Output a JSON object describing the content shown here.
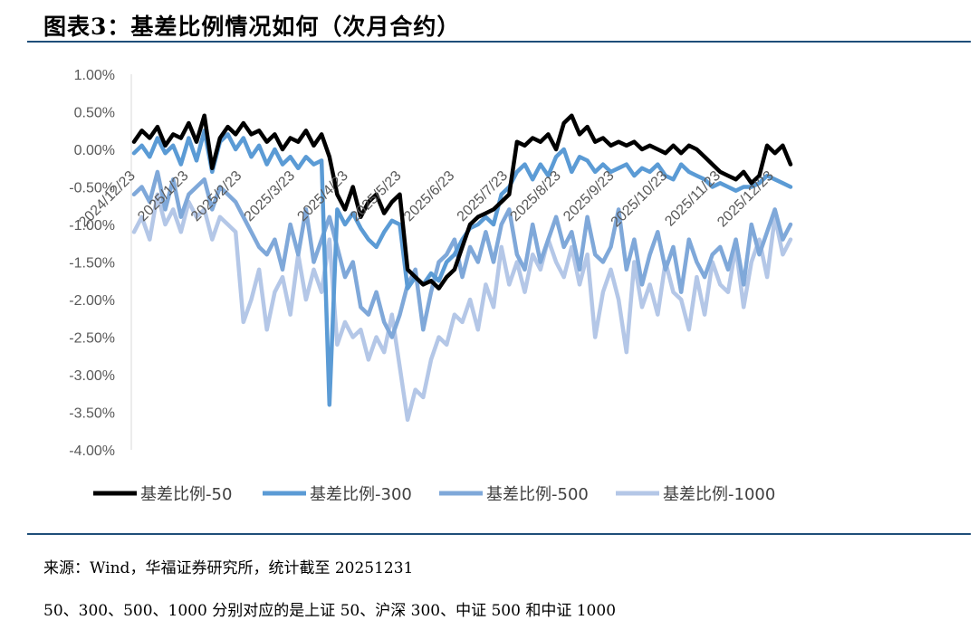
{
  "header": {
    "title": "图表3：基差比例情况如何（次月合约）"
  },
  "footer": {
    "source": "来源：Wind，华福证券研究所，统计截至 20251231",
    "description": "50、300、500、1000 分别对应的是上证 50、沪深 300、中证 500 和中证 1000"
  },
  "chart_data": {
    "type": "line",
    "title": "",
    "xlabel": "",
    "ylabel": "",
    "ylim": [
      -4.0,
      1.0
    ],
    "y_ticks": [
      "1.00%",
      "0.50%",
      "0.00%",
      "-0.50%",
      "-1.00%",
      "-1.50%",
      "-2.00%",
      "-2.50%",
      "-3.00%",
      "-3.50%",
      "-4.00%"
    ],
    "x_ticks": [
      "2024/12/23",
      "2025/1/23",
      "2025/2/23",
      "2025/3/23",
      "2025/4/23",
      "2025/5/23",
      "2025/6/23",
      "2025/7/23",
      "2025/8/23",
      "2025/9/23",
      "2025/10/23",
      "2025/11/23",
      "2025/12/23"
    ],
    "legend_position": "bottom",
    "series": [
      {
        "name": "基差比例-50",
        "color": "#000000",
        "values": [
          0.1,
          0.25,
          0.15,
          0.3,
          0.05,
          0.2,
          0.15,
          0.35,
          0.1,
          0.45,
          -0.25,
          0.15,
          0.3,
          0.2,
          0.35,
          0.2,
          0.25,
          0.1,
          0.2,
          0.0,
          0.15,
          0.1,
          0.25,
          0.05,
          0.2,
          -0.1,
          -0.6,
          -0.8,
          -0.5,
          -0.9,
          -0.7,
          -0.6,
          -0.85,
          -0.7,
          -0.6,
          -1.6,
          -1.7,
          -1.8,
          -1.75,
          -1.85,
          -1.7,
          -1.6,
          -1.3,
          -1.0,
          -0.9,
          -0.85,
          -0.8,
          -0.7,
          -0.6,
          0.1,
          0.05,
          0.15,
          0.1,
          0.2,
          0.0,
          0.35,
          0.45,
          0.2,
          0.3,
          0.1,
          0.15,
          0.05,
          0.1,
          0.05,
          0.1,
          0.0,
          0.05,
          0.0,
          -0.05,
          0.05,
          -0.05,
          0.05,
          0.0,
          -0.1,
          -0.2,
          -0.3,
          -0.35,
          -0.4,
          -0.3,
          -0.45,
          -0.35,
          0.05,
          -0.05,
          0.05,
          -0.2
        ]
      },
      {
        "name": "基差比例-300",
        "color": "#5b9bd5",
        "values": [
          -0.05,
          0.05,
          -0.1,
          0.15,
          -0.05,
          0.05,
          -0.2,
          0.15,
          -0.15,
          0.25,
          -0.3,
          0.1,
          0.2,
          0.0,
          0.15,
          -0.1,
          0.05,
          -0.2,
          0.0,
          -0.2,
          -0.1,
          -0.25,
          -0.1,
          -0.2,
          -0.15,
          -3.4,
          -0.8,
          -1.0,
          -0.85,
          -1.05,
          -1.2,
          -1.3,
          -1.1,
          -0.95,
          -1.0,
          -1.85,
          -1.7,
          -1.8,
          -1.65,
          -1.75,
          -1.5,
          -1.4,
          -1.2,
          -1.05,
          -1.0,
          -0.9,
          -1.0,
          -0.6,
          -0.5,
          -0.3,
          -0.2,
          -0.4,
          -0.2,
          -0.35,
          -0.1,
          0.0,
          -0.3,
          -0.1,
          -0.15,
          -0.3,
          -0.2,
          -0.3,
          -0.25,
          -0.2,
          -0.35,
          -0.25,
          -0.3,
          -0.2,
          -0.35,
          -0.4,
          -0.2,
          -0.3,
          -0.35,
          -0.4,
          -0.5,
          -0.45,
          -0.5,
          -0.55,
          -0.5,
          -0.5,
          -0.45,
          -0.35,
          -0.4,
          -0.45,
          -0.5
        ]
      },
      {
        "name": "基差比例-500",
        "color": "#7fa8d9",
        "values": [
          -0.6,
          -0.5,
          -0.7,
          -0.3,
          -0.8,
          -0.4,
          -0.9,
          -0.6,
          -0.5,
          -0.4,
          -0.8,
          -0.5,
          -0.6,
          -0.7,
          -0.9,
          -1.1,
          -1.3,
          -1.4,
          -1.2,
          -1.6,
          -1.0,
          -1.4,
          -0.8,
          -1.5,
          -1.2,
          -0.9,
          -1.3,
          -1.7,
          -1.5,
          -2.1,
          -2.2,
          -1.9,
          -2.3,
          -2.5,
          -2.2,
          -1.8,
          -1.6,
          -2.4,
          -1.9,
          -1.5,
          -1.4,
          -1.2,
          -1.7,
          -1.3,
          -1.5,
          -1.1,
          -1.5,
          -1.0,
          -0.8,
          -1.4,
          -1.6,
          -1.0,
          -1.5,
          -1.2,
          -0.9,
          -1.3,
          -1.1,
          -1.6,
          -0.9,
          -1.4,
          -1.5,
          -1.3,
          -0.8,
          -1.6,
          -1.2,
          -1.8,
          -1.4,
          -1.1,
          -1.6,
          -1.3,
          -1.9,
          -1.2,
          -1.5,
          -1.7,
          -1.4,
          -1.3,
          -1.6,
          -1.2,
          -1.8,
          -1.0,
          -1.4,
          -1.1,
          -0.8,
          -1.2,
          -1.0
        ]
      },
      {
        "name": "基差比例-1000",
        "color": "#b4c7e7",
        "values": [
          -1.1,
          -0.9,
          -1.2,
          -0.6,
          -1.0,
          -0.8,
          -1.1,
          -0.7,
          -0.9,
          -0.8,
          -1.2,
          -0.9,
          -1.0,
          -1.1,
          -2.3,
          -2.0,
          -1.6,
          -2.4,
          -1.9,
          -1.7,
          -2.2,
          -1.4,
          -2.0,
          -1.6,
          -1.9,
          -1.2,
          -2.6,
          -2.3,
          -2.5,
          -2.4,
          -2.8,
          -2.5,
          -2.7,
          -2.2,
          -2.9,
          -3.6,
          -3.2,
          -3.3,
          -2.8,
          -2.5,
          -2.6,
          -2.2,
          -2.3,
          -2.0,
          -2.4,
          -1.8,
          -2.1,
          -1.3,
          -1.8,
          -1.5,
          -1.9,
          -1.4,
          -1.6,
          -1.2,
          -1.5,
          -1.7,
          -1.3,
          -1.8,
          -1.4,
          -2.5,
          -1.9,
          -1.6,
          -2.0,
          -2.7,
          -1.5,
          -2.1,
          -1.8,
          -2.2,
          -1.5,
          -1.9,
          -2.0,
          -2.4,
          -1.7,
          -2.2,
          -1.5,
          -1.8,
          -1.9,
          -1.3,
          -2.1,
          -1.5,
          -1.2,
          -1.7,
          -0.9,
          -1.4,
          -1.2
        ]
      }
    ]
  }
}
